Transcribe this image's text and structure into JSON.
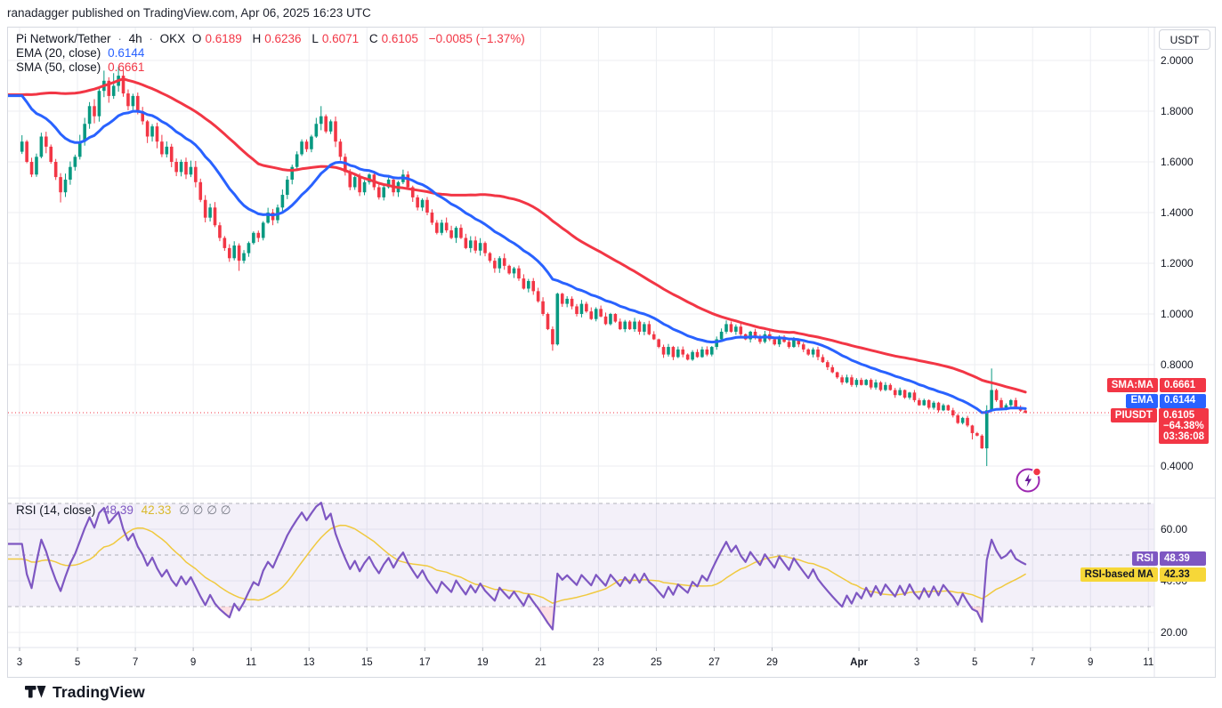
{
  "header": {
    "byline": "ranadagger published on TradingView.com, Apr 06, 2025 16:23 UTC"
  },
  "symbol": {
    "title": "Pi Network/Tether",
    "sep": "·",
    "interval": "4h",
    "exchange": "OKX",
    "ohlc": [
      {
        "k": "O",
        "v": "0.6189"
      },
      {
        "k": "H",
        "v": "0.6236"
      },
      {
        "k": "L",
        "v": "0.6071"
      },
      {
        "k": "C",
        "v": "0.6105"
      }
    ],
    "change": "−0.0085 (−1.37%)"
  },
  "legend": {
    "ema": {
      "name": "EMA (20, close)",
      "value": "0.6144"
    },
    "sma": {
      "name": "SMA (50, close)",
      "value": "0.6661"
    }
  },
  "rsi_legend": {
    "name": "RSI (14, close)",
    "value": "48.39",
    "ma_value": "42.33",
    "empty": "∅  ∅  ∅  ∅"
  },
  "axis": {
    "currency": "USDT"
  },
  "badges": {
    "sma": {
      "label": "SMA:MA",
      "value": "0.6661"
    },
    "ema": {
      "label": "EMA",
      "value": "0.6144"
    },
    "price": {
      "label": "PIUSDT",
      "value": "0.6105",
      "pct": "−64.38%",
      "countdown": "03:36:08"
    },
    "rsi": {
      "label": "RSI",
      "value": "48.39"
    },
    "rsima": {
      "label": "RSI-based MA",
      "value": "42.33"
    }
  },
  "price_axis": {
    "labels": [
      {
        "text": "2.0000",
        "price": 2.0
      },
      {
        "text": "1.8000",
        "price": 1.8
      },
      {
        "text": "1.6000",
        "price": 1.6
      },
      {
        "text": "1.4000",
        "price": 1.4
      },
      {
        "text": "1.2000",
        "price": 1.2
      },
      {
        "text": "1.0000",
        "price": 1.0
      },
      {
        "text": "0.8000",
        "price": 0.8
      },
      {
        "text": "0.4000",
        "price": 0.4
      }
    ]
  },
  "rsi_axis": {
    "labels": [
      {
        "text": "60.00",
        "value": 60
      },
      {
        "text": "40.00",
        "value": 40
      },
      {
        "text": "20.00",
        "value": 20
      }
    ]
  },
  "time_axis": {
    "ticks": [
      {
        "label": "3",
        "day": 0
      },
      {
        "label": "5",
        "day": 2
      },
      {
        "label": "7",
        "day": 4
      },
      {
        "label": "9",
        "day": 6
      },
      {
        "label": "11",
        "day": 8
      },
      {
        "label": "13",
        "day": 10
      },
      {
        "label": "15",
        "day": 12
      },
      {
        "label": "17",
        "day": 14
      },
      {
        "label": "19",
        "day": 16
      },
      {
        "label": "21",
        "day": 18
      },
      {
        "label": "23",
        "day": 20
      },
      {
        "label": "25",
        "day": 22
      },
      {
        "label": "27",
        "day": 24
      },
      {
        "label": "29",
        "day": 26
      },
      {
        "label": "Apr",
        "day": 29,
        "bold": true
      },
      {
        "label": "3",
        "day": 31
      },
      {
        "label": "5",
        "day": 33
      },
      {
        "label": "7",
        "day": 35
      },
      {
        "label": "9",
        "day": 37
      },
      {
        "label": "11",
        "day": 39
      }
    ]
  },
  "chart_data": {
    "type": "candlestick",
    "symbol": "PIUSDT",
    "exchange": "OKX",
    "interval": "4h",
    "start_date": "Mar 3",
    "end_date": "Apr 6, 2025 16:23 UTC",
    "ylim": [
      0.35,
      2.05
    ],
    "price_step": 0.2,
    "last_bar": {
      "open": 0.6189,
      "high": 0.6236,
      "low": 0.6071,
      "close": 0.6105,
      "change": -0.0085,
      "change_pct": -1.37
    },
    "candles": {
      "first_open": 1.64,
      "closes": [
        1.68,
        1.6,
        1.55,
        1.62,
        1.7,
        1.66,
        1.6,
        1.54,
        1.48,
        1.53,
        1.58,
        1.62,
        1.68,
        1.75,
        1.82,
        1.78,
        1.88,
        1.92,
        1.86,
        1.9,
        1.94,
        1.87,
        1.82,
        1.86,
        1.8,
        1.76,
        1.7,
        1.74,
        1.68,
        1.63,
        1.66,
        1.6,
        1.56,
        1.6,
        1.55,
        1.58,
        1.52,
        1.45,
        1.38,
        1.42,
        1.35,
        1.3,
        1.26,
        1.22,
        1.27,
        1.21,
        1.24,
        1.28,
        1.32,
        1.3,
        1.36,
        1.4,
        1.37,
        1.42,
        1.47,
        1.53,
        1.58,
        1.63,
        1.68,
        1.65,
        1.7,
        1.75,
        1.78,
        1.72,
        1.76,
        1.68,
        1.62,
        1.56,
        1.5,
        1.54,
        1.48,
        1.52,
        1.55,
        1.5,
        1.46,
        1.5,
        1.53,
        1.48,
        1.52,
        1.55,
        1.5,
        1.46,
        1.42,
        1.45,
        1.4,
        1.36,
        1.32,
        1.36,
        1.33,
        1.3,
        1.34,
        1.3,
        1.26,
        1.29,
        1.25,
        1.28,
        1.24,
        1.21,
        1.18,
        1.22,
        1.19,
        1.16,
        1.18,
        1.14,
        1.1,
        1.13,
        1.09,
        1.05,
        1.0,
        0.94,
        0.88,
        1.08,
        1.04,
        1.06,
        1.03,
        1.0,
        1.04,
        1.01,
        0.98,
        1.02,
        0.99,
        0.96,
        1.0,
        0.97,
        0.94,
        0.97,
        0.94,
        0.97,
        0.93,
        0.96,
        0.92,
        0.9,
        0.87,
        0.84,
        0.87,
        0.83,
        0.86,
        0.84,
        0.82,
        0.85,
        0.83,
        0.86,
        0.84,
        0.87,
        0.9,
        0.93,
        0.96,
        0.93,
        0.95,
        0.92,
        0.9,
        0.93,
        0.91,
        0.89,
        0.92,
        0.9,
        0.88,
        0.91,
        0.89,
        0.87,
        0.9,
        0.88,
        0.86,
        0.84,
        0.86,
        0.83,
        0.81,
        0.79,
        0.77,
        0.75,
        0.73,
        0.75,
        0.72,
        0.74,
        0.72,
        0.74,
        0.71,
        0.73,
        0.7,
        0.72,
        0.7,
        0.68,
        0.7,
        0.67,
        0.69,
        0.66,
        0.64,
        0.66,
        0.63,
        0.65,
        0.62,
        0.64,
        0.62,
        0.6,
        0.57,
        0.59,
        0.56,
        0.53,
        0.52,
        0.47,
        0.62,
        0.7,
        0.66,
        0.63,
        0.64,
        0.66,
        0.63,
        0.619,
        0.6105
      ],
      "wick_overrides": {
        "8": [
          null,
          1.44
        ],
        "17": [
          1.96,
          null
        ],
        "19": [
          1.95,
          null
        ],
        "20": [
          1.975,
          null
        ],
        "45": [
          null,
          1.17
        ],
        "62": [
          1.82,
          null
        ],
        "110": [
          null,
          0.855
        ],
        "197": [
          null,
          0.505
        ],
        "200": [
          0.64,
          0.4
        ],
        "201": [
          0.785,
          null
        ],
        "208": [
          0.6236,
          0.6071
        ]
      }
    },
    "overlays": [
      {
        "type": "EMA",
        "length": 20,
        "source": "close",
        "last": 0.6144,
        "color": "#2962ff"
      },
      {
        "type": "SMA",
        "length": 50,
        "source": "close",
        "last": 0.6661,
        "color": "#f23645"
      }
    ],
    "rsi": {
      "length": 14,
      "source": "close",
      "last": 48.39,
      "ma_last": 42.33,
      "bands": [
        70,
        50,
        30
      ],
      "grid_levels": [
        60,
        40,
        20
      ]
    }
  },
  "footer": {
    "brand": "TradingView"
  },
  "colors": {
    "up": "#089981",
    "down": "#f23645",
    "ema": "#2962ff",
    "sma": "#f23645",
    "rsi_line": "#7e57c2",
    "rsi_ma": "#f0c93f",
    "band_fill": "rgba(126,87,194,0.09)",
    "grid": "#eceef2",
    "separator": "#e0e3eb",
    "border": "#d6d9e0",
    "last_price_line": "#f23645",
    "oversold_fill": "rgba(242,54,69,0.28)"
  }
}
